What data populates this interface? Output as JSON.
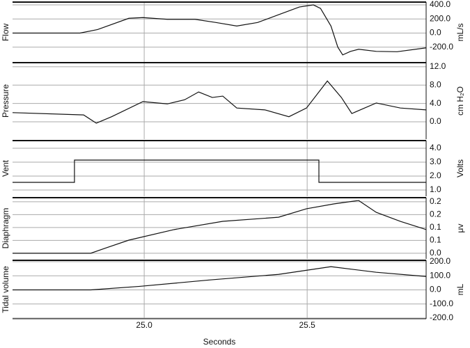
{
  "chart_data": [
    {
      "type": "line",
      "ylabel": "Flow",
      "unit": "mL/s",
      "xlim": [
        24.596,
        25.865
      ],
      "ylim": [
        -420,
        440
      ],
      "yticks": [
        {
          "value": 400,
          "label": "400.0"
        },
        {
          "value": 200,
          "label": "200.0"
        },
        {
          "value": 0,
          "label": "0.0"
        },
        {
          "value": -200,
          "label": "-200.0"
        }
      ],
      "x": [
        24.596,
        24.803,
        24.857,
        24.953,
        24.996,
        25.071,
        25.156,
        25.22,
        25.284,
        25.348,
        25.412,
        25.476,
        25.519,
        25.541,
        25.573,
        25.594,
        25.609,
        25.633,
        25.658,
        25.712,
        25.776,
        25.865
      ],
      "series": [
        {
          "color": "#111111",
          "values": [
            0,
            0,
            50,
            210,
            220,
            195,
            195,
            150,
            100,
            150,
            260,
            370,
            400,
            350,
            100,
            -200,
            -310,
            -260,
            -230,
            -260,
            -265,
            -210
          ]
        }
      ]
    },
    {
      "type": "line",
      "ylabel": "Pressure",
      "unit": "cm H₂O",
      "xlim": [
        24.596,
        25.865
      ],
      "ylim": [
        -3.8,
        12.9
      ],
      "yticks": [
        {
          "value": 12,
          "label": "12.0"
        },
        {
          "value": 8,
          "label": "8.0"
        },
        {
          "value": 4,
          "label": "4.0"
        },
        {
          "value": 0,
          "label": "0.0"
        }
      ],
      "x": [
        24.596,
        24.814,
        24.853,
        24.9,
        24.996,
        25.071,
        25.124,
        25.167,
        25.209,
        25.241,
        25.284,
        25.37,
        25.444,
        25.498,
        25.562,
        25.605,
        25.637,
        25.712,
        25.786,
        25.865
      ],
      "series": [
        {
          "color": "#111111",
          "values": [
            2.0,
            1.5,
            -0.3,
            1.1,
            4.4,
            3.9,
            4.8,
            6.5,
            5.3,
            5.6,
            3.0,
            2.6,
            1.1,
            3.0,
            8.9,
            5.3,
            1.8,
            4.1,
            3.0,
            2.6
          ]
        }
      ]
    },
    {
      "type": "line",
      "ylabel": "Vent",
      "unit": "Volts",
      "xlim": [
        24.596,
        25.865
      ],
      "ylim": [
        0.55,
        4.55
      ],
      "yticks": [
        {
          "value": 4,
          "label": "4.0"
        },
        {
          "value": 3,
          "label": "3.0"
        },
        {
          "value": 2,
          "label": "2.0"
        },
        {
          "value": 1,
          "label": "1.0"
        }
      ],
      "x": [
        24.596,
        24.786,
        24.786,
        25.536,
        25.536,
        25.865
      ],
      "series": [
        {
          "color": "#111111",
          "values": [
            1.55,
            1.55,
            3.15,
            3.15,
            1.55,
            1.55
          ]
        }
      ]
    },
    {
      "type": "line",
      "ylabel": "Diaphragm",
      "unit": "μv",
      "xlim": [
        24.596,
        25.865
      ],
      "ylim": [
        -0.022,
        0.216
      ],
      "yticks": [
        {
          "value": 0.2,
          "label": "0.2"
        },
        {
          "value": 0.15,
          "label": "0.2"
        },
        {
          "value": 0.1,
          "label": "0.1"
        },
        {
          "value": 0.05,
          "label": "0.1"
        },
        {
          "value": 0,
          "label": "0.0"
        }
      ],
      "x": [
        24.596,
        24.836,
        24.879,
        24.953,
        25.092,
        25.241,
        25.412,
        25.498,
        25.583,
        25.658,
        25.712,
        25.786,
        25.865
      ],
      "series": [
        {
          "color": "#111111",
          "values": [
            0.0,
            0.0,
            0.019,
            0.051,
            0.092,
            0.124,
            0.14,
            0.173,
            0.192,
            0.205,
            0.159,
            0.124,
            0.092
          ]
        }
      ]
    },
    {
      "type": "line",
      "ylabel": "Tidal volume",
      "unit": "mL",
      "xlim": [
        24.596,
        25.865
      ],
      "ylim": [
        -205,
        210
      ],
      "yticks": [
        {
          "value": 200,
          "label": "200.0"
        },
        {
          "value": 100,
          "label": "100.0"
        },
        {
          "value": 0,
          "label": "0.0"
        },
        {
          "value": -100,
          "label": "-100.0"
        },
        {
          "value": -200,
          "label": "-200.0"
        }
      ],
      "xticks": [
        {
          "value": 25,
          "label": "25.0"
        },
        {
          "value": 25.5,
          "label": "25.5"
        }
      ],
      "xlabel": "Seconds",
      "x": [
        24.596,
        24.836,
        24.986,
        25.199,
        25.412,
        25.573,
        25.712,
        25.865
      ],
      "series": [
        {
          "color": "#111111",
          "values": [
            0,
            0,
            25,
            70,
            110,
            165,
            125,
            95
          ]
        }
      ]
    }
  ]
}
